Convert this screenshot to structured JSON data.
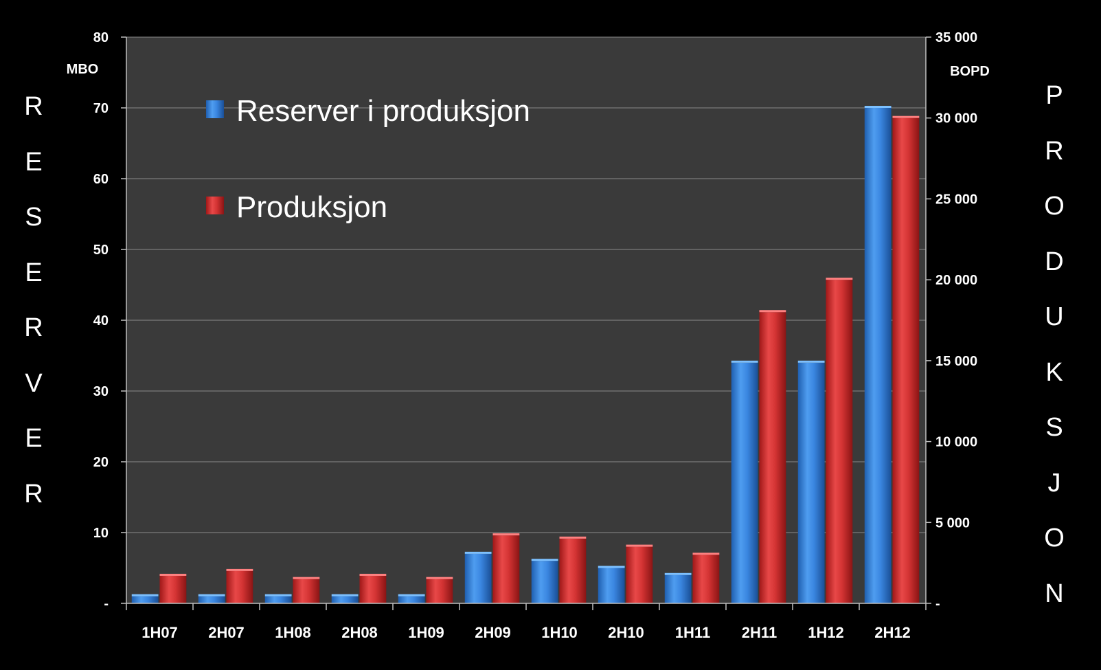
{
  "chart_data": {
    "type": "bar",
    "categories": [
      "1H07",
      "2H07",
      "1H08",
      "2H08",
      "1H09",
      "2H09",
      "1H10",
      "2H10",
      "1H11",
      "2H11",
      "1H12",
      "2H12"
    ],
    "series": [
      {
        "name": "Reserver i produksjon",
        "axis": "left",
        "color": "#2f7fd9",
        "values": [
          1,
          1,
          1,
          1,
          1,
          7,
          6,
          5,
          4,
          34,
          34,
          70
        ]
      },
      {
        "name": "Produksjon",
        "axis": "right",
        "color": "#d42e2e",
        "values": [
          1700,
          2000,
          1500,
          1700,
          1500,
          4200,
          4000,
          3500,
          3000,
          18000,
          20000,
          30000
        ]
      }
    ],
    "left_axis": {
      "unit": "MBO",
      "ylim": [
        0,
        80
      ],
      "ticks": [
        {
          "v": 0,
          "label": "-"
        },
        {
          "v": 10,
          "label": "10"
        },
        {
          "v": 20,
          "label": "20"
        },
        {
          "v": 30,
          "label": "30"
        },
        {
          "v": 40,
          "label": "40"
        },
        {
          "v": 50,
          "label": "50"
        },
        {
          "v": 60,
          "label": "60"
        },
        {
          "v": 70,
          "label": "70"
        },
        {
          "v": 80,
          "label": "80"
        }
      ]
    },
    "right_axis": {
      "unit": "BOPD",
      "ylim": [
        0,
        35000
      ],
      "ticks": [
        {
          "v": 0,
          "label": "-"
        },
        {
          "v": 5000,
          "label": "5 000"
        },
        {
          "v": 10000,
          "label": "10 000"
        },
        {
          "v": 15000,
          "label": "15 000"
        },
        {
          "v": 20000,
          "label": "20 000"
        },
        {
          "v": 25000,
          "label": "25 000"
        },
        {
          "v": 30000,
          "label": "30 000"
        },
        {
          "v": 35000,
          "label": "35 000"
        }
      ]
    },
    "grid": true,
    "legend_position": "top-left",
    "left_vertical_label": "RESERVER",
    "right_vertical_label": "PRODUKSJON",
    "colors": {
      "background": "#000000",
      "plot_area": "#3a3a3a",
      "grid": "#8a8a8a",
      "text": "#ffffff"
    }
  }
}
